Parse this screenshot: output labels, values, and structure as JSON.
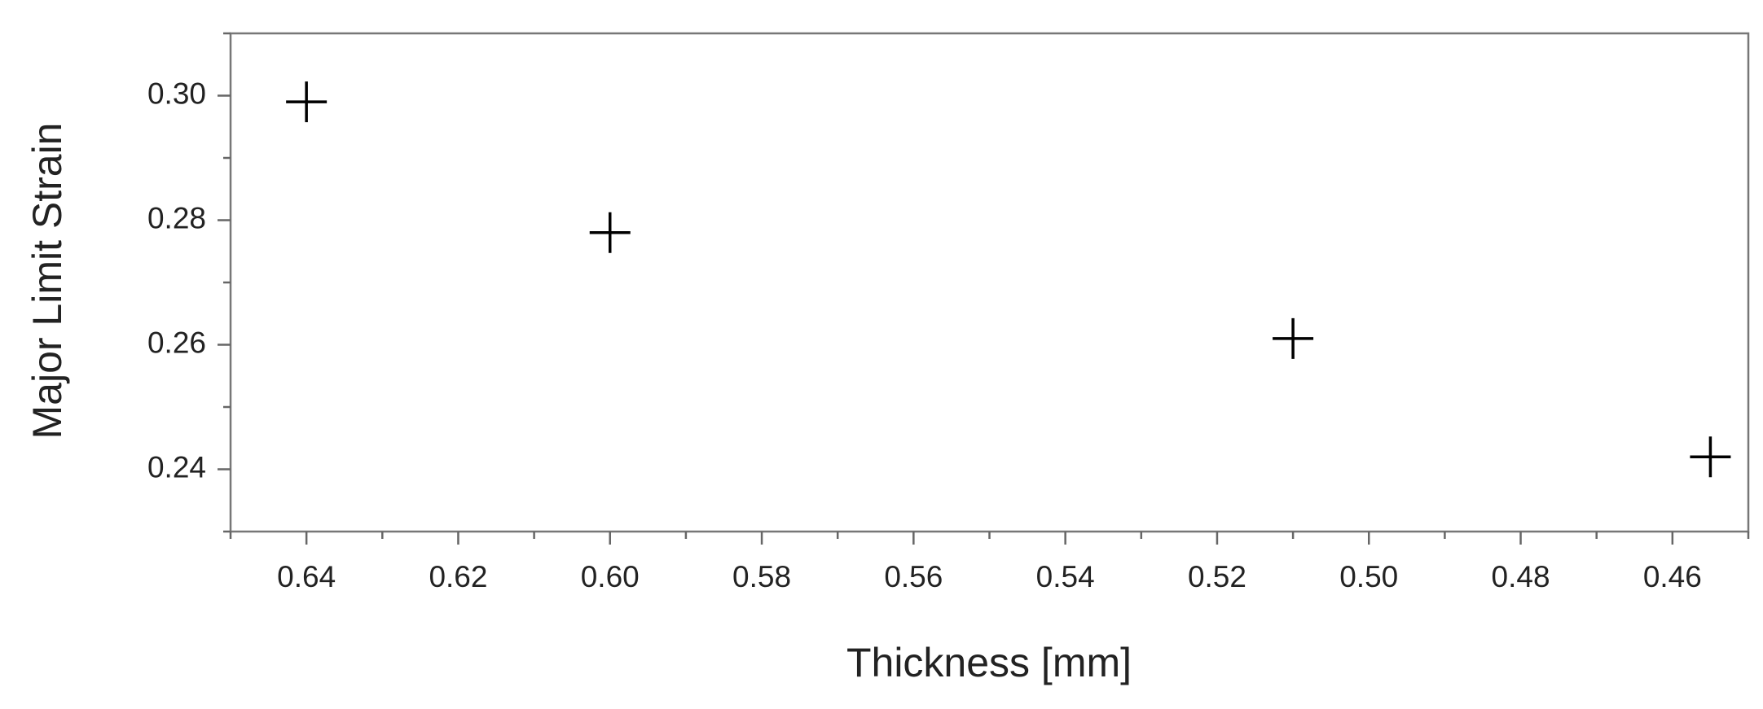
{
  "chart_data": {
    "type": "scatter",
    "x_label": "Thickness [mm]",
    "y_label": "Major Limit Strain",
    "series": [
      {
        "color": "#000000",
        "marker": "plus",
        "x": [
          0.64,
          0.6,
          0.51,
          0.455
        ],
        "values": [
          0.299,
          0.278,
          0.261,
          0.242
        ]
      }
    ],
    "xlim": [
      0.65,
      0.45
    ],
    "xticks": [
      0.64,
      0.62,
      {
        "value": 0.6,
        "label": "0.60"
      },
      0.58,
      0.56,
      0.54,
      0.52,
      {
        "value": 0.5,
        "label": "0.50"
      },
      0.48,
      0.46
    ],
    "x_minor_ticks": [
      0.65,
      0.63,
      0.61,
      0.59,
      0.57,
      0.55,
      0.53,
      0.51,
      0.49,
      0.47,
      0.45
    ],
    "ylim": [
      0.23,
      0.31
    ],
    "yticks": [
      0.24,
      0.26,
      0.28,
      {
        "value": 0.3,
        "label": "0.30"
      }
    ],
    "y_minor_ticks": [
      0.23,
      0.25,
      0.27,
      0.29,
      0.31
    ],
    "grid": false
  }
}
